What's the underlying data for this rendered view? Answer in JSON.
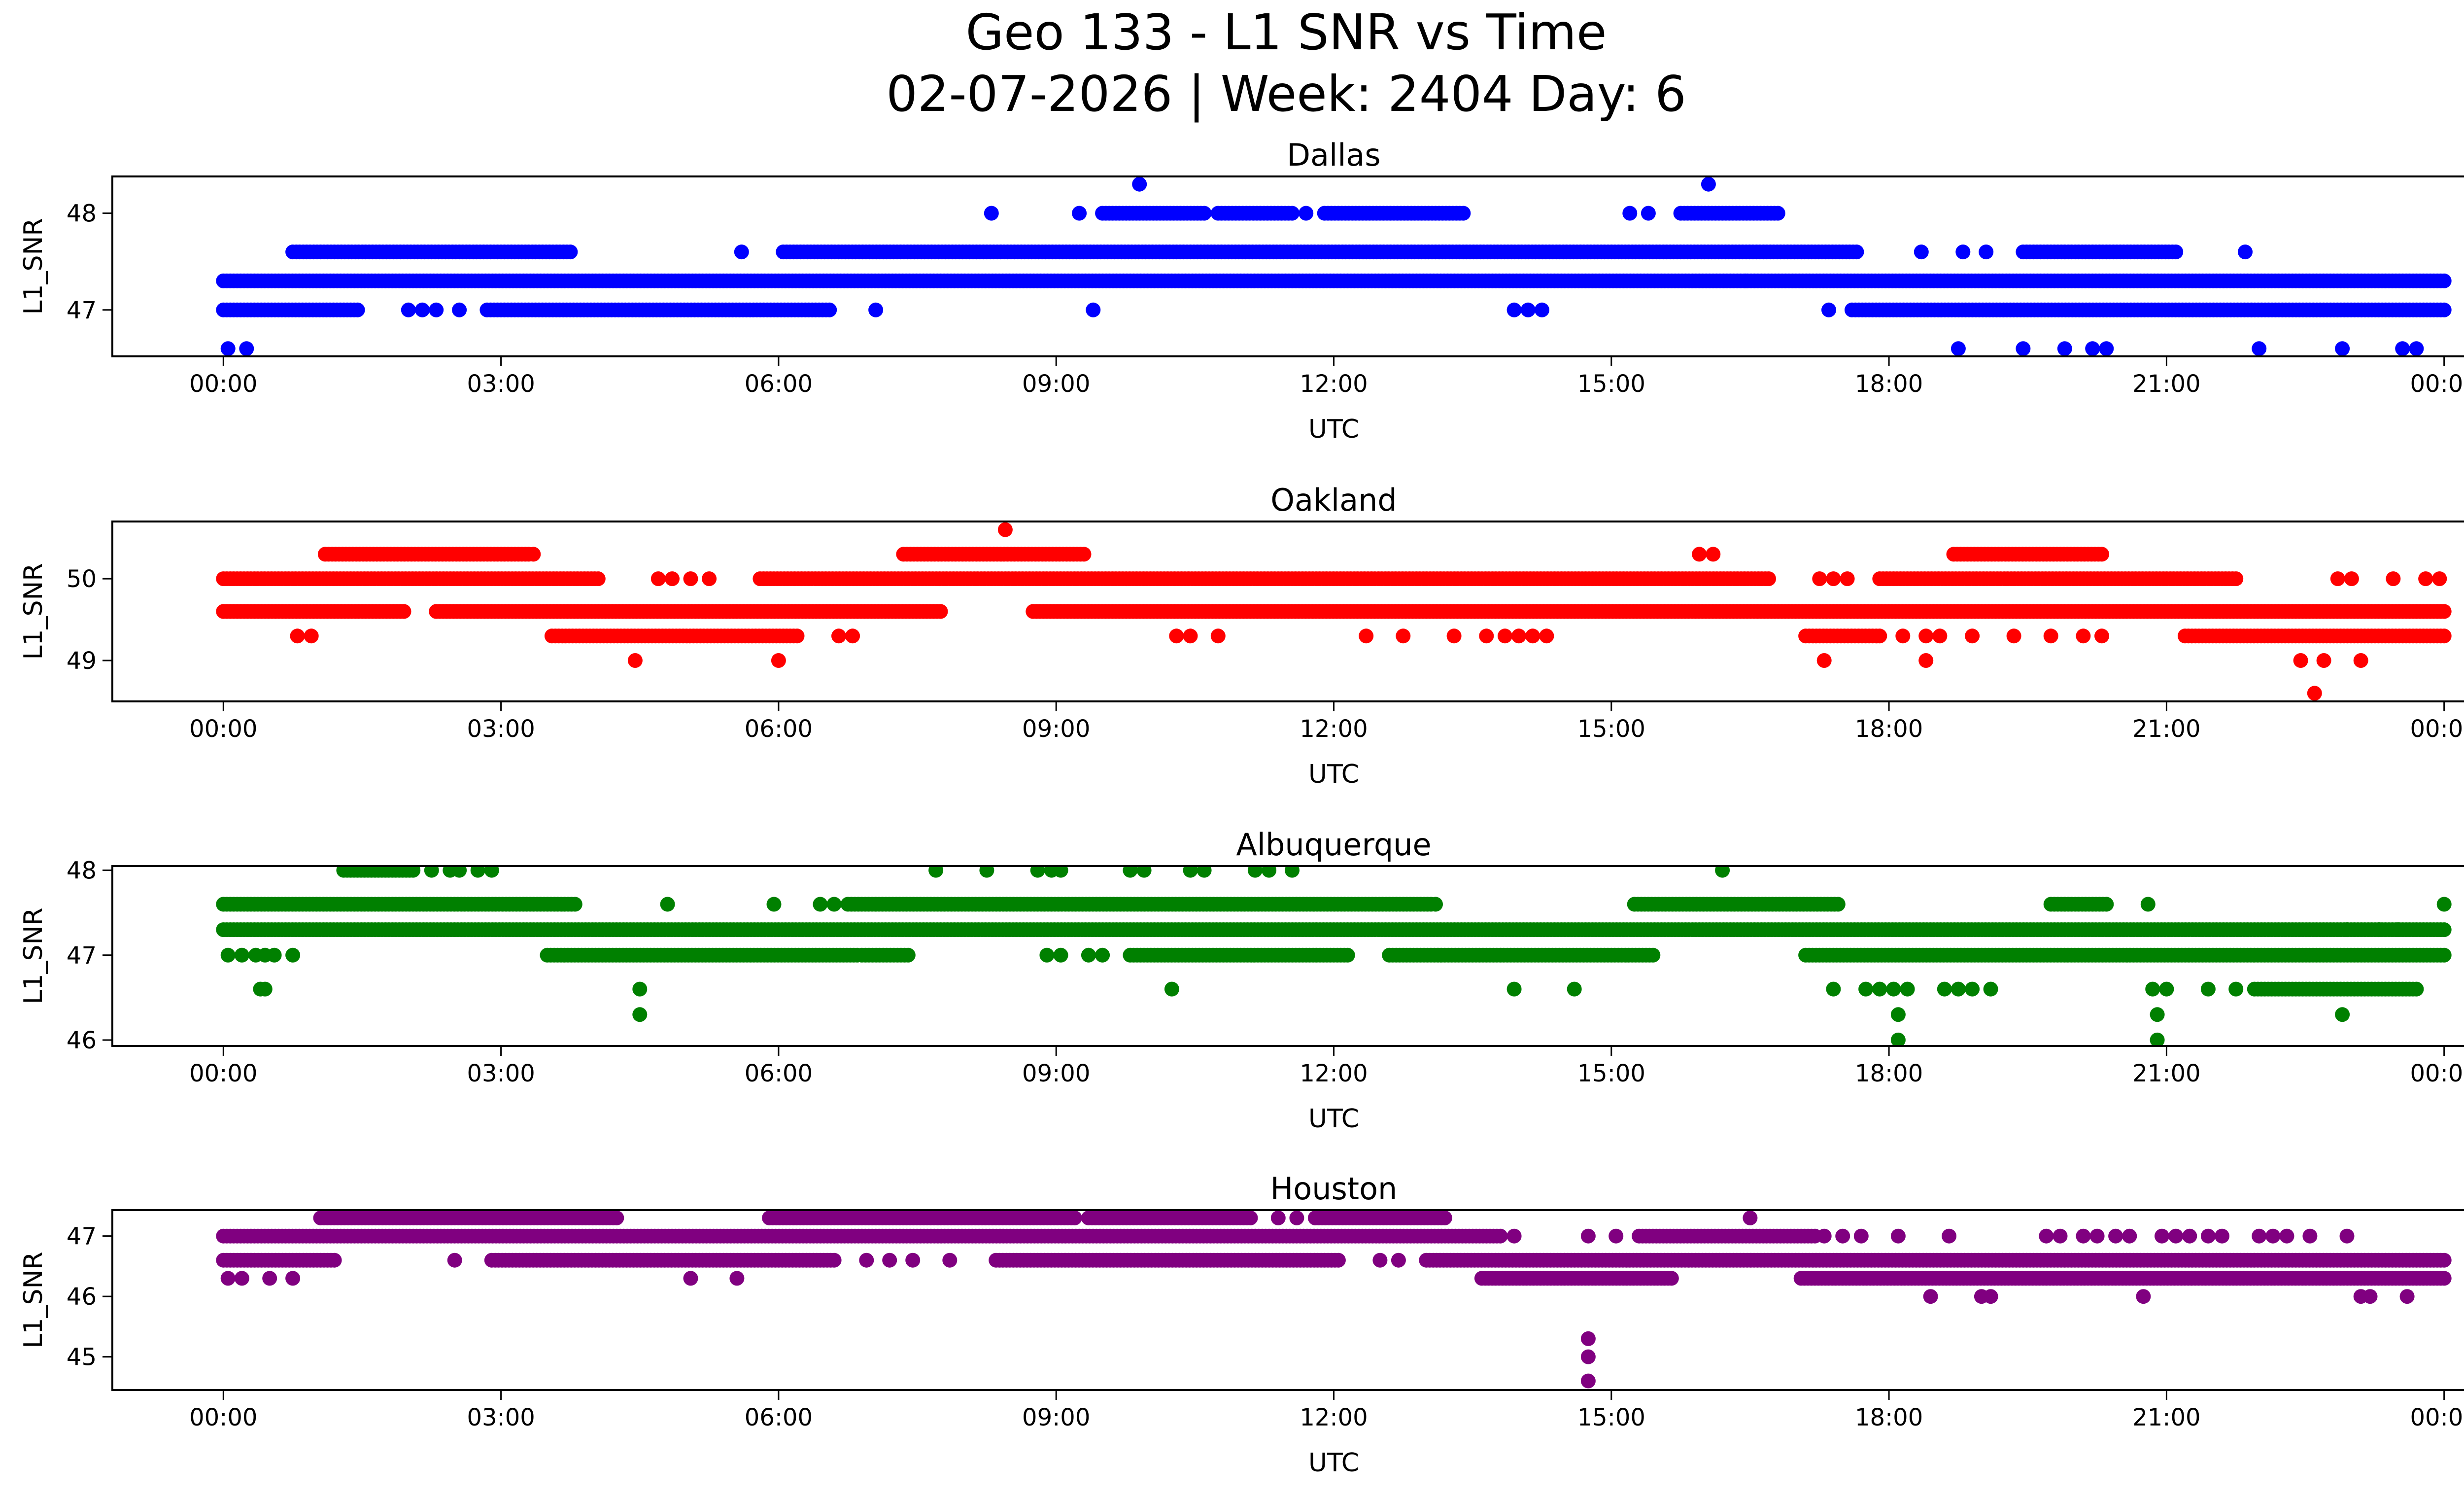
{
  "figure": {
    "title_line1": "Geo 133 - L1 SNR vs Time",
    "title_line2": "02-07-2026 | Week: 2404 Day: 6"
  },
  "chart_data": [
    {
      "type": "scatter",
      "title": "Dallas",
      "xlabel": "UTC",
      "ylabel": "L1_SNR",
      "color": "#0000ff",
      "x_unit": "hours UTC",
      "xlim": [
        -1.2,
        25.2
      ],
      "ylim": [
        46.52,
        48.38
      ],
      "xticks": [
        0,
        3,
        6,
        9,
        12,
        15,
        18,
        21,
        24
      ],
      "xtick_labels": [
        "00:00",
        "03:00",
        "06:00",
        "09:00",
        "12:00",
        "15:00",
        "18:00",
        "21:00",
        "00:00"
      ],
      "yticks": [
        47,
        48
      ],
      "ytick_labels": [
        "47",
        "48"
      ],
      "bands": [
        {
          "y": 47.3,
          "ranges": [
            [
              0.0,
              24.0
            ]
          ]
        },
        {
          "y": 47.6,
          "ranges": [
            [
              0.75,
              3.75
            ],
            [
              6.05,
              17.65
            ],
            [
              19.45,
              21.1
            ]
          ]
        },
        {
          "y": 47.0,
          "ranges": [
            [
              0.0,
              1.45
            ],
            [
              2.85,
              6.55
            ],
            [
              17.6,
              24.0
            ]
          ]
        },
        {
          "y": 48.0,
          "ranges": [
            [
              9.5,
              10.6
            ],
            [
              10.75,
              11.55
            ],
            [
              11.9,
              13.4
            ],
            [
              15.75,
              16.8
            ]
          ]
        }
      ],
      "points": [
        {
          "x": 0.05,
          "y": 46.6
        },
        {
          "x": 0.25,
          "y": 46.6
        },
        {
          "x": 2.0,
          "y": 47.0
        },
        {
          "x": 2.15,
          "y": 47.0
        },
        {
          "x": 2.3,
          "y": 47.0
        },
        {
          "x": 2.55,
          "y": 47.0
        },
        {
          "x": 5.6,
          "y": 47.6
        },
        {
          "x": 7.05,
          "y": 47.0
        },
        {
          "x": 8.3,
          "y": 48.0
        },
        {
          "x": 9.25,
          "y": 48.0
        },
        {
          "x": 9.4,
          "y": 47.0
        },
        {
          "x": 9.9,
          "y": 48.3
        },
        {
          "x": 11.7,
          "y": 48.0
        },
        {
          "x": 13.95,
          "y": 47.0
        },
        {
          "x": 14.1,
          "y": 47.0
        },
        {
          "x": 14.25,
          "y": 47.0
        },
        {
          "x": 15.2,
          "y": 48.0
        },
        {
          "x": 15.4,
          "y": 48.0
        },
        {
          "x": 16.05,
          "y": 48.3
        },
        {
          "x": 16.45,
          "y": 47.3
        },
        {
          "x": 17.35,
          "y": 47.0
        },
        {
          "x": 18.35,
          "y": 47.6
        },
        {
          "x": 18.8,
          "y": 47.6
        },
        {
          "x": 19.05,
          "y": 47.6
        },
        {
          "x": 21.85,
          "y": 47.6
        },
        {
          "x": 18.75,
          "y": 46.6
        },
        {
          "x": 19.45,
          "y": 46.6
        },
        {
          "x": 19.9,
          "y": 46.6
        },
        {
          "x": 20.2,
          "y": 46.6
        },
        {
          "x": 20.35,
          "y": 46.6
        },
        {
          "x": 22.0,
          "y": 46.6
        },
        {
          "x": 22.9,
          "y": 46.6
        },
        {
          "x": 23.55,
          "y": 46.6
        },
        {
          "x": 23.7,
          "y": 46.6
        }
      ]
    },
    {
      "type": "scatter",
      "title": "Oakland",
      "xlabel": "UTC",
      "ylabel": "L1_SNR",
      "color": "#ff0000",
      "x_unit": "hours UTC",
      "xlim": [
        -1.2,
        25.2
      ],
      "ylim": [
        48.5,
        50.7
      ],
      "xticks": [
        0,
        3,
        6,
        9,
        12,
        15,
        18,
        21,
        24
      ],
      "xtick_labels": [
        "00:00",
        "03:00",
        "06:00",
        "09:00",
        "12:00",
        "15:00",
        "18:00",
        "21:00",
        "00:00"
      ],
      "yticks": [
        49,
        50
      ],
      "ytick_labels": [
        "49",
        "50"
      ],
      "bands": [
        {
          "y": 49.6,
          "ranges": [
            [
              0.0,
              1.95
            ],
            [
              2.3,
              7.75
            ],
            [
              8.75,
              24.0
            ]
          ]
        },
        {
          "y": 50.0,
          "ranges": [
            [
              0.0,
              4.05
            ],
            [
              5.8,
              16.7
            ],
            [
              17.9,
              21.75
            ]
          ]
        },
        {
          "y": 50.3,
          "ranges": [
            [
              1.1,
              3.3
            ],
            [
              7.35,
              9.3
            ],
            [
              18.7,
              20.3
            ]
          ]
        },
        {
          "y": 49.3,
          "ranges": [
            [
              3.55,
              6.2
            ],
            [
              17.1,
              17.9
            ],
            [
              21.2,
              24.0
            ]
          ]
        }
      ],
      "points": [
        {
          "x": 0.8,
          "y": 49.3
        },
        {
          "x": 0.95,
          "y": 49.3
        },
        {
          "x": 3.35,
          "y": 50.3
        },
        {
          "x": 4.45,
          "y": 49.0
        },
        {
          "x": 6.0,
          "y": 49.0
        },
        {
          "x": 4.7,
          "y": 50.0
        },
        {
          "x": 4.85,
          "y": 50.0
        },
        {
          "x": 5.05,
          "y": 50.0
        },
        {
          "x": 5.25,
          "y": 50.0
        },
        {
          "x": 6.65,
          "y": 49.3
        },
        {
          "x": 6.8,
          "y": 49.3
        },
        {
          "x": 8.45,
          "y": 50.6
        },
        {
          "x": 10.3,
          "y": 49.3
        },
        {
          "x": 10.45,
          "y": 49.3
        },
        {
          "x": 10.75,
          "y": 49.3
        },
        {
          "x": 12.35,
          "y": 49.3
        },
        {
          "x": 12.75,
          "y": 49.3
        },
        {
          "x": 13.3,
          "y": 49.3
        },
        {
          "x": 13.65,
          "y": 49.3
        },
        {
          "x": 13.85,
          "y": 49.3
        },
        {
          "x": 14.0,
          "y": 49.3
        },
        {
          "x": 14.15,
          "y": 49.3
        },
        {
          "x": 14.3,
          "y": 49.3
        },
        {
          "x": 15.95,
          "y": 50.3
        },
        {
          "x": 16.1,
          "y": 50.3
        },
        {
          "x": 17.3,
          "y": 49.0
        },
        {
          "x": 18.4,
          "y": 49.0
        },
        {
          "x": 17.25,
          "y": 50.0
        },
        {
          "x": 17.4,
          "y": 50.0
        },
        {
          "x": 17.55,
          "y": 50.0
        },
        {
          "x": 18.15,
          "y": 49.3
        },
        {
          "x": 18.4,
          "y": 49.3
        },
        {
          "x": 18.55,
          "y": 49.3
        },
        {
          "x": 18.9,
          "y": 49.3
        },
        {
          "x": 19.35,
          "y": 49.3
        },
        {
          "x": 19.75,
          "y": 49.3
        },
        {
          "x": 20.1,
          "y": 49.3
        },
        {
          "x": 20.3,
          "y": 49.3
        },
        {
          "x": 22.45,
          "y": 49.0
        },
        {
          "x": 22.7,
          "y": 49.0
        },
        {
          "x": 23.1,
          "y": 49.0
        },
        {
          "x": 22.6,
          "y": 48.6
        },
        {
          "x": 22.85,
          "y": 50.0
        },
        {
          "x": 23.0,
          "y": 50.0
        },
        {
          "x": 23.45,
          "y": 50.0
        },
        {
          "x": 23.8,
          "y": 50.0
        },
        {
          "x": 23.95,
          "y": 50.0
        }
      ]
    },
    {
      "type": "scatter",
      "title": "Albuquerque",
      "xlabel": "UTC",
      "ylabel": "L1_SNR",
      "color": "#008000",
      "x_unit": "hours UTC",
      "xlim": [
        -1.2,
        25.2
      ],
      "ylim": [
        45.93,
        48.05
      ],
      "xticks": [
        0,
        3,
        6,
        9,
        12,
        15,
        18,
        21,
        24
      ],
      "xtick_labels": [
        "00:00",
        "03:00",
        "06:00",
        "09:00",
        "12:00",
        "15:00",
        "18:00",
        "21:00",
        "00:00"
      ],
      "yticks": [
        46,
        47,
        48
      ],
      "ytick_labels": [
        "46",
        "47",
        "48"
      ],
      "bands": [
        {
          "y": 47.3,
          "ranges": [
            [
              0.0,
              24.0
            ]
          ]
        },
        {
          "y": 47.6,
          "ranges": [
            [
              0.0,
              3.8
            ],
            [
              6.75,
              13.05
            ],
            [
              15.25,
              17.45
            ],
            [
              19.75,
              20.35
            ]
          ]
        },
        {
          "y": 47.0,
          "ranges": [
            [
              3.5,
              6.85
            ],
            [
              6.9,
              7.4
            ],
            [
              9.8,
              12.15
            ],
            [
              12.6,
              15.45
            ],
            [
              17.1,
              24.0
            ]
          ]
        },
        {
          "y": 46.6,
          "ranges": [
            [
              21.95,
              23.7
            ]
          ]
        },
        {
          "y": 48.0,
          "ranges": [
            [
              1.3,
              2.05
            ]
          ]
        }
      ],
      "points": [
        {
          "x": 0.05,
          "y": 47.0
        },
        {
          "x": 0.2,
          "y": 47.0
        },
        {
          "x": 0.35,
          "y": 47.0
        },
        {
          "x": 0.45,
          "y": 47.0
        },
        {
          "x": 0.55,
          "y": 47.0
        },
        {
          "x": 0.75,
          "y": 47.0
        },
        {
          "x": 0.4,
          "y": 46.6
        },
        {
          "x": 0.45,
          "y": 46.6
        },
        {
          "x": 2.25,
          "y": 48.0
        },
        {
          "x": 2.45,
          "y": 48.0
        },
        {
          "x": 2.55,
          "y": 48.0
        },
        {
          "x": 2.75,
          "y": 48.0
        },
        {
          "x": 2.9,
          "y": 48.0
        },
        {
          "x": 4.5,
          "y": 46.6
        },
        {
          "x": 4.5,
          "y": 46.3
        },
        {
          "x": 4.8,
          "y": 47.6
        },
        {
          "x": 5.95,
          "y": 47.6
        },
        {
          "x": 6.45,
          "y": 47.6
        },
        {
          "x": 6.6,
          "y": 47.6
        },
        {
          "x": 7.7,
          "y": 48.0
        },
        {
          "x": 8.25,
          "y": 48.0
        },
        {
          "x": 8.8,
          "y": 48.0
        },
        {
          "x": 8.95,
          "y": 48.0
        },
        {
          "x": 9.05,
          "y": 48.0
        },
        {
          "x": 9.8,
          "y": 48.0
        },
        {
          "x": 9.95,
          "y": 48.0
        },
        {
          "x": 10.45,
          "y": 48.0
        },
        {
          "x": 10.6,
          "y": 48.0
        },
        {
          "x": 11.15,
          "y": 48.0
        },
        {
          "x": 11.3,
          "y": 48.0
        },
        {
          "x": 11.55,
          "y": 48.0
        },
        {
          "x": 8.9,
          "y": 47.0
        },
        {
          "x": 9.05,
          "y": 47.0
        },
        {
          "x": 9.35,
          "y": 47.0
        },
        {
          "x": 9.5,
          "y": 47.0
        },
        {
          "x": 10.25,
          "y": 46.6
        },
        {
          "x": 13.1,
          "y": 47.6
        },
        {
          "x": 13.95,
          "y": 46.6
        },
        {
          "x": 14.6,
          "y": 46.6
        },
        {
          "x": 16.2,
          "y": 48.0
        },
        {
          "x": 17.4,
          "y": 46.6
        },
        {
          "x": 17.75,
          "y": 46.6
        },
        {
          "x": 17.9,
          "y": 46.6
        },
        {
          "x": 18.05,
          "y": 46.6
        },
        {
          "x": 18.2,
          "y": 46.6
        },
        {
          "x": 18.1,
          "y": 46.3
        },
        {
          "x": 18.1,
          "y": 46.0
        },
        {
          "x": 18.6,
          "y": 46.6
        },
        {
          "x": 18.75,
          "y": 46.6
        },
        {
          "x": 18.9,
          "y": 46.6
        },
        {
          "x": 19.1,
          "y": 46.6
        },
        {
          "x": 20.8,
          "y": 47.6
        },
        {
          "x": 20.85,
          "y": 46.6
        },
        {
          "x": 21.0,
          "y": 46.6
        },
        {
          "x": 20.9,
          "y": 46.3
        },
        {
          "x": 20.9,
          "y": 46.0
        },
        {
          "x": 21.45,
          "y": 46.6
        },
        {
          "x": 21.75,
          "y": 46.6
        },
        {
          "x": 22.9,
          "y": 46.3
        },
        {
          "x": 22.95,
          "y": 47.3
        },
        {
          "x": 23.3,
          "y": 47.3
        },
        {
          "x": 23.5,
          "y": 47.3
        },
        {
          "x": 24.0,
          "y": 47.6
        }
      ]
    },
    {
      "type": "scatter",
      "title": "Houston",
      "xlabel": "UTC",
      "ylabel": "L1_SNR",
      "color": "#800080",
      "x_unit": "hours UTC",
      "xlim": [
        -1.2,
        25.2
      ],
      "ylim": [
        44.45,
        47.43
      ],
      "xticks": [
        0,
        3,
        6,
        9,
        12,
        15,
        18,
        21,
        24
      ],
      "xtick_labels": [
        "00:00",
        "03:00",
        "06:00",
        "09:00",
        "12:00",
        "15:00",
        "18:00",
        "21:00",
        "00:00"
      ],
      "yticks": [
        45,
        46,
        47
      ],
      "ytick_labels": [
        "45",
        "46",
        "47"
      ],
      "bands": [
        {
          "y": 47.0,
          "ranges": [
            [
              0.0,
              13.8
            ],
            [
              15.3,
              17.2
            ]
          ]
        },
        {
          "y": 46.6,
          "ranges": [
            [
              0.0,
              1.2
            ],
            [
              2.9,
              6.6
            ],
            [
              8.35,
              12.05
            ],
            [
              13.0,
              24.0
            ]
          ]
        },
        {
          "y": 47.3,
          "ranges": [
            [
              1.05,
              4.25
            ],
            [
              5.9,
              9.2
            ],
            [
              9.35,
              11.1
            ],
            [
              11.8,
              13.2
            ]
          ]
        },
        {
          "y": 46.3,
          "ranges": [
            [
              13.6,
              15.65
            ],
            [
              17.05,
              24.0
            ]
          ]
        }
      ],
      "points": [
        {
          "x": 0.05,
          "y": 46.3
        },
        {
          "x": 0.2,
          "y": 46.3
        },
        {
          "x": 0.5,
          "y": 46.3
        },
        {
          "x": 0.75,
          "y": 46.3
        },
        {
          "x": 2.5,
          "y": 46.6
        },
        {
          "x": 5.05,
          "y": 46.3
        },
        {
          "x": 5.55,
          "y": 46.3
        },
        {
          "x": 6.95,
          "y": 46.6
        },
        {
          "x": 7.2,
          "y": 46.6
        },
        {
          "x": 7.45,
          "y": 46.6
        },
        {
          "x": 7.85,
          "y": 46.6
        },
        {
          "x": 11.4,
          "y": 47.3
        },
        {
          "x": 11.6,
          "y": 47.3
        },
        {
          "x": 12.5,
          "y": 46.6
        },
        {
          "x": 12.7,
          "y": 46.6
        },
        {
          "x": 13.95,
          "y": 47.0
        },
        {
          "x": 14.75,
          "y": 47.0
        },
        {
          "x": 15.05,
          "y": 47.0
        },
        {
          "x": 16.5,
          "y": 47.3
        },
        {
          "x": 14.75,
          "y": 45.3
        },
        {
          "x": 14.75,
          "y": 45.0
        },
        {
          "x": 14.75,
          "y": 44.6
        },
        {
          "x": 17.3,
          "y": 47.0
        },
        {
          "x": 17.5,
          "y": 47.0
        },
        {
          "x": 17.7,
          "y": 47.0
        },
        {
          "x": 18.1,
          "y": 47.0
        },
        {
          "x": 18.65,
          "y": 47.0
        },
        {
          "x": 18.45,
          "y": 46.0
        },
        {
          "x": 19.0,
          "y": 46.0
        },
        {
          "x": 19.1,
          "y": 46.0
        },
        {
          "x": 19.7,
          "y": 47.0
        },
        {
          "x": 19.85,
          "y": 47.0
        },
        {
          "x": 20.1,
          "y": 47.0
        },
        {
          "x": 20.25,
          "y": 47.0
        },
        {
          "x": 20.45,
          "y": 47.0
        },
        {
          "x": 20.6,
          "y": 47.0
        },
        {
          "x": 20.95,
          "y": 47.0
        },
        {
          "x": 21.1,
          "y": 47.0
        },
        {
          "x": 21.25,
          "y": 47.0
        },
        {
          "x": 21.45,
          "y": 47.0
        },
        {
          "x": 21.6,
          "y": 47.0
        },
        {
          "x": 20.75,
          "y": 46.0
        },
        {
          "x": 22.0,
          "y": 47.0
        },
        {
          "x": 22.15,
          "y": 47.0
        },
        {
          "x": 22.3,
          "y": 47.0
        },
        {
          "x": 22.55,
          "y": 47.0
        },
        {
          "x": 22.95,
          "y": 47.0
        },
        {
          "x": 23.1,
          "y": 46.0
        },
        {
          "x": 23.2,
          "y": 46.0
        },
        {
          "x": 23.6,
          "y": 46.0
        }
      ]
    }
  ]
}
